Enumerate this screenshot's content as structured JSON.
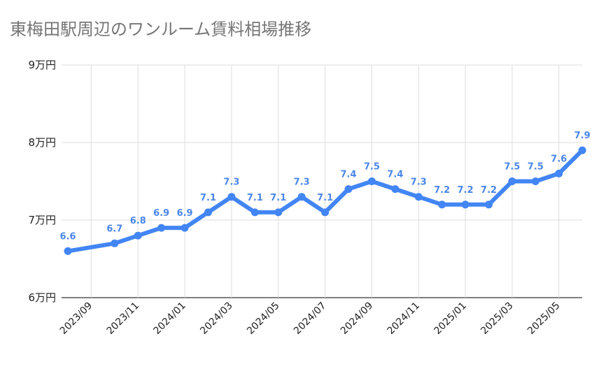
{
  "chart_data": {
    "type": "line",
    "title": "東梅田駅周辺のワンルーム賃料相場推移",
    "xlabel": "",
    "ylabel": "",
    "x": [
      "2023/08",
      "2023/10",
      "2023/11",
      "2023/12",
      "2024/01",
      "2024/02",
      "2024/03",
      "2024/04",
      "2024/05",
      "2024/06",
      "2024/07",
      "2024/08",
      "2024/09",
      "2024/10",
      "2024/11",
      "2024/12",
      "2025/01",
      "2025/02",
      "2025/03",
      "2025/04",
      "2025/05",
      "2025/06"
    ],
    "x_tick_labels": [
      "2023/09",
      "2023/11",
      "2024/01",
      "2024/03",
      "2024/05",
      "2024/07",
      "2024/09",
      "2024/11",
      "2025/01",
      "2025/03",
      "2025/05"
    ],
    "x_tick_positions": [
      "2023/09",
      "2023/11",
      "2024/01",
      "2024/03",
      "2024/05",
      "2024/07",
      "2024/09",
      "2024/11",
      "2025/01",
      "2025/03",
      "2025/05"
    ],
    "series": [
      {
        "values": [
          6.6,
          6.7,
          6.8,
          6.9,
          6.9,
          7.1,
          7.3,
          7.1,
          7.1,
          7.3,
          7.1,
          7.4,
          7.5,
          7.4,
          7.3,
          7.2,
          7.2,
          7.2,
          7.5,
          7.5,
          7.6,
          7.9
        ]
      }
    ],
    "data_labels": [
      "6.6",
      "6.7",
      "6.8",
      "6.9",
      "6.9",
      "7.1",
      "7.3",
      "7.1",
      "7.1",
      "7.3",
      "7.1",
      "7.4",
      "7.5",
      "7.4",
      "7.3",
      "7.2",
      "7.2",
      "7.2",
      "7.5",
      "7.5",
      "7.6",
      "7.9"
    ],
    "ylim": [
      6,
      9
    ],
    "y_ticks": [
      6,
      7,
      8,
      9
    ],
    "y_tick_labels": [
      "6万円",
      "7万円",
      "8万円",
      "9万円"
    ],
    "grid": true,
    "legend": "none",
    "colors": {
      "line": "#4285f4",
      "label": "#4a86e8",
      "grid": "#dddddd",
      "axis": "#333333",
      "title": "#757575"
    }
  }
}
